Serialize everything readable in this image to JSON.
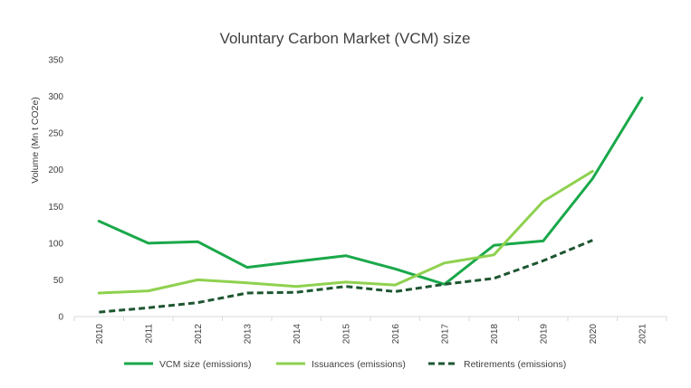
{
  "chart_data": {
    "type": "line",
    "title": "Voluntary Carbon Market (VCM) size",
    "xlabel": "",
    "ylabel": "Volume (Mn t CO2e)",
    "ylim": [
      0,
      350
    ],
    "yticks": [
      0,
      50,
      100,
      150,
      200,
      250,
      300,
      350
    ],
    "grid": false,
    "legend_position": "bottom",
    "categories": [
      "2010",
      "2011",
      "2012",
      "2013",
      "2014",
      "2015",
      "2016",
      "2017",
      "2018",
      "2019",
      "2020",
      "2021"
    ],
    "series": [
      {
        "name": "VCM size (emissions)",
        "color": "#1aa84a",
        "style": "solid",
        "values": [
          130,
          100,
          102,
          67,
          75,
          83,
          65,
          44,
          97,
          103,
          188,
          298
        ]
      },
      {
        "name": "Issuances (emissions)",
        "color": "#8fd14f",
        "style": "solid",
        "values": [
          32,
          35,
          50,
          46,
          41,
          47,
          43,
          73,
          84,
          157,
          198,
          null
        ]
      },
      {
        "name": "Retirements (emissions)",
        "color": "#1e5631",
        "style": "dashed",
        "values": [
          6,
          12,
          19,
          32,
          33,
          41,
          34,
          44,
          52,
          76,
          104,
          null
        ]
      }
    ]
  }
}
